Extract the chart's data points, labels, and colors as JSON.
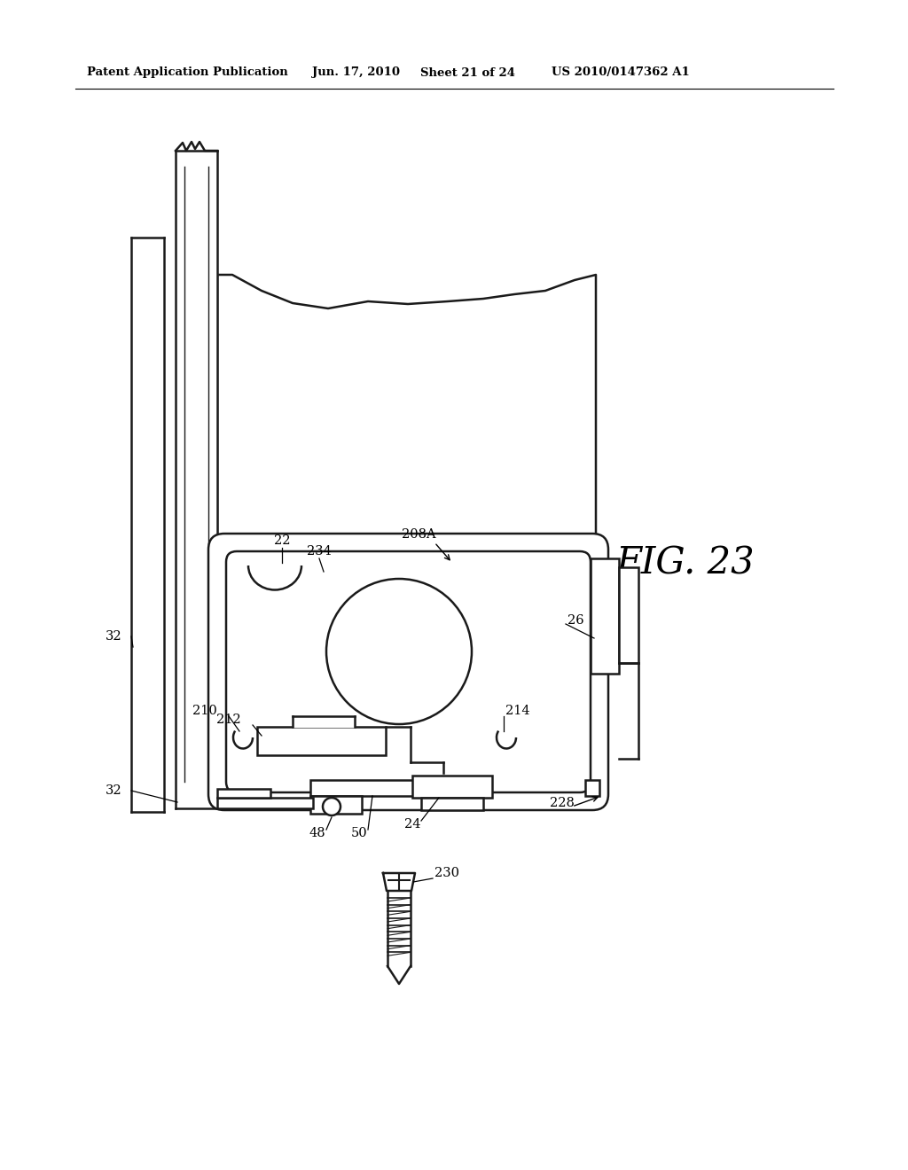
{
  "bg_color": "#ffffff",
  "line_color": "#1a1a1a",
  "header_text": "Patent Application Publication",
  "header_date": "Jun. 17, 2010",
  "header_sheet": "Sheet 21 of 24",
  "header_patent": "US 2010/0147362 A1",
  "fig_label": "FIG. 23"
}
